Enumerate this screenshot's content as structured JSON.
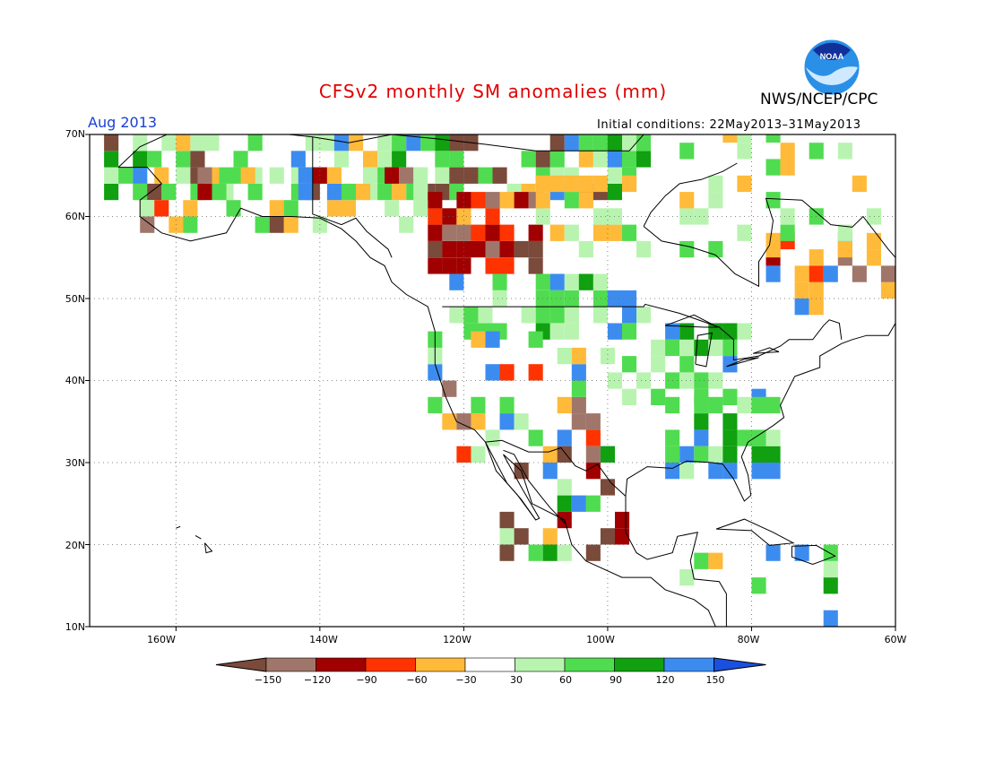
{
  "title": "CFSv2 monthly SM anomalies (mm)",
  "org": "NWS/NCEP/CPC",
  "month": "Aug 2013",
  "initial_conditions": "Initial conditions: 22May2013–31May2013",
  "logo_text": "NOAA",
  "lat_labels": [
    "70N",
    "60N",
    "50N",
    "40N",
    "30N",
    "20N",
    "10N"
  ],
  "lon_labels": [
    "160W",
    "140W",
    "120W",
    "100W",
    "80W",
    "60W"
  ],
  "colorbar": {
    "labels": [
      "−150",
      "−120",
      "−90",
      "−60",
      "−30",
      "30",
      "60",
      "90",
      "120",
      "150"
    ],
    "colors": [
      "#7a4a3a",
      "#a0766b",
      "#a00000",
      "#ff3300",
      "#ffba3a",
      "#ffffff",
      "#b8f4b0",
      "#50dc50",
      "#10a010",
      "#3c8cf0",
      "#1a50e0"
    ]
  },
  "map_region": {
    "lon_min": -172,
    "lon_max": -60,
    "lat_min": 10,
    "lat_max": 70
  }
}
